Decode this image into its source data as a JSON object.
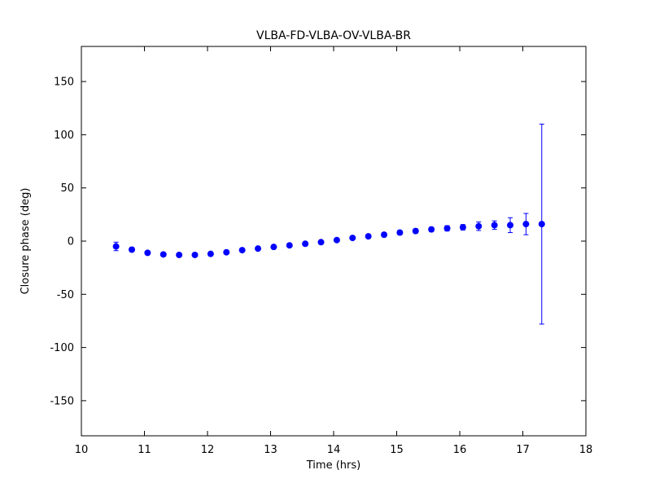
{
  "chart_data": {
    "type": "scatter",
    "title": "VLBA-FD-VLBA-OV-VLBA-BR",
    "xlabel": "Time (hrs)",
    "ylabel": "Closure phase (deg)",
    "xlim": [
      10,
      18
    ],
    "ylim": [
      -183,
      183
    ],
    "xticks": [
      10,
      11,
      12,
      13,
      14,
      15,
      16,
      17,
      18
    ],
    "yticks": [
      -150,
      -100,
      -50,
      0,
      50,
      100,
      150
    ],
    "grid": false,
    "legend": "none",
    "marker_color": "#0000ff",
    "frame_color": "#000000",
    "series": [
      {
        "name": "closure-phase-errorbar-series",
        "x": [
          10.55,
          10.8,
          11.05,
          11.3,
          11.55,
          11.8,
          12.05,
          12.3,
          12.55,
          12.8,
          13.05,
          13.3,
          13.55,
          13.8,
          14.05,
          14.3,
          14.55,
          14.8,
          15.05,
          15.3,
          15.55,
          15.8,
          16.05,
          16.3,
          16.55,
          16.8,
          17.05,
          17.3
        ],
        "y": [
          -5,
          -8,
          -11,
          -12.5,
          -13,
          -13,
          -12,
          -10.5,
          -8.5,
          -7,
          -5.5,
          -4,
          -2.5,
          -1,
          1,
          3,
          4.5,
          6,
          8,
          9.5,
          11,
          12,
          13,
          14,
          15,
          15,
          16,
          16
        ],
        "yerr": [
          4,
          2,
          1.5,
          1.5,
          1.5,
          1.5,
          1.5,
          1.5,
          1.5,
          1.5,
          1.5,
          1.5,
          1.5,
          1.5,
          1.5,
          1.5,
          1.5,
          2,
          2,
          2,
          2,
          2.5,
          2.5,
          4,
          4,
          7,
          10,
          94
        ]
      }
    ]
  }
}
